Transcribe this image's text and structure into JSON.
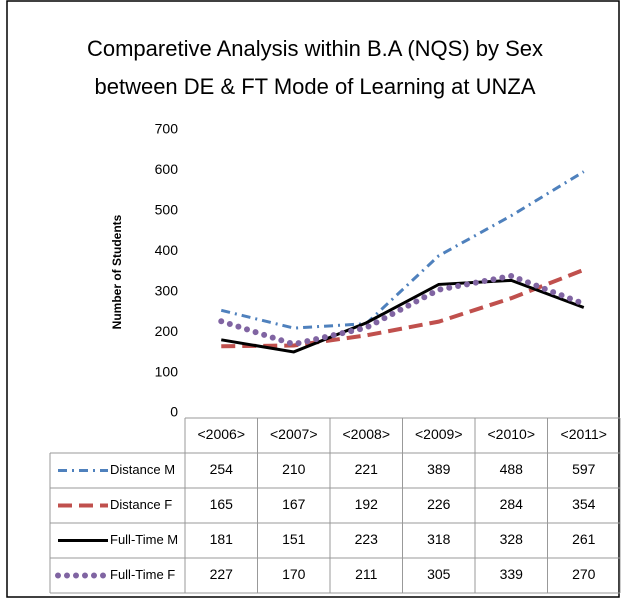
{
  "chart_data": {
    "type": "line",
    "title": [
      "Comparetive Analysis within B.A (NQS) by Sex",
      "between DE & FT Mode of Learning  at UNZA"
    ],
    "y_label": "Number of Students",
    "categories": [
      "<2006>",
      "<2007>",
      "<2008>",
      "<2009>",
      "<2010>",
      "<2011>"
    ],
    "series": [
      {
        "name": "Distance M",
        "color": "#4f81bd",
        "line_style": "dash-dot",
        "values": [
          254,
          210,
          221,
          389,
          488,
          597
        ]
      },
      {
        "name": "Distance F",
        "color": "#c0504d",
        "line_style": "dashed",
        "values": [
          165,
          167,
          192,
          226,
          284,
          354
        ]
      },
      {
        "name": "Full-Time M",
        "color": "#000000",
        "line_style": "solid",
        "values": [
          181,
          151,
          223,
          318,
          328,
          261
        ]
      },
      {
        "name": "Full-Time F",
        "color": "#8064a2",
        "line_style": "dotted",
        "values": [
          227,
          170,
          211,
          305,
          339,
          270
        ]
      }
    ],
    "ylim": [
      0,
      700
    ],
    "yticks": [
      0,
      100,
      200,
      300,
      400,
      500,
      600,
      700
    ],
    "grid": false,
    "legend": "table"
  }
}
